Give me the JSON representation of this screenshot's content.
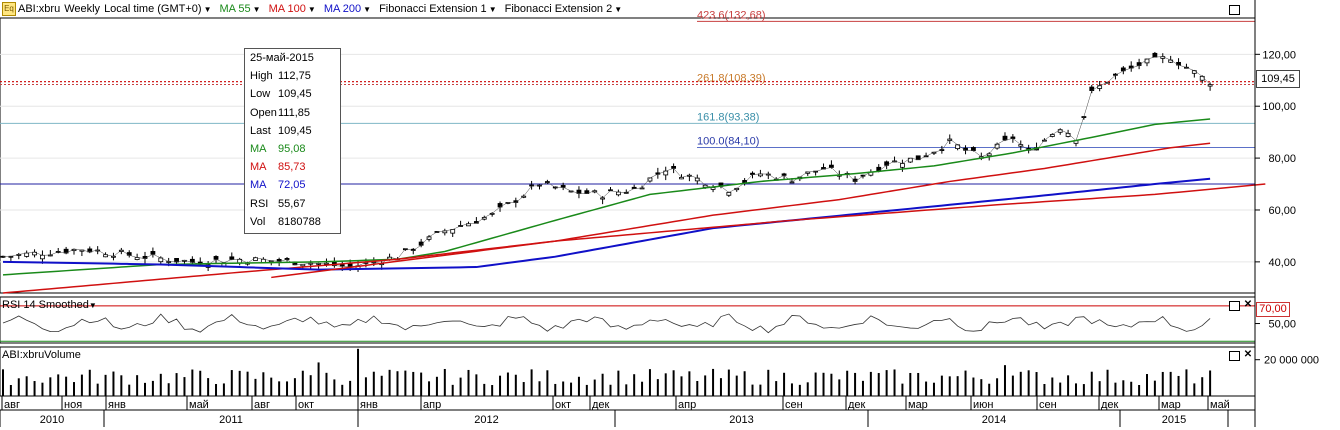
{
  "header": {
    "symbol": "ABI:xbru",
    "period": "Weekly",
    "timezone": "Local time (GMT+0)",
    "indicators": [
      {
        "label": "MA 55",
        "color": "#1a8a1a"
      },
      {
        "label": "MA 100",
        "color": "#d01010"
      },
      {
        "label": "MA 200",
        "color": "#1010c8"
      },
      {
        "label": "Fibonacci Extension 1",
        "color": "#000000"
      },
      {
        "label": "Fibonacci Extension 2",
        "color": "#000000"
      }
    ]
  },
  "tooltip": {
    "date": "25-май-2015",
    "rows": [
      {
        "k": "High",
        "v": "112,75",
        "color": "#000000"
      },
      {
        "k": "Low",
        "v": "109,45",
        "color": "#000000"
      },
      {
        "k": "Open",
        "v": "111,85",
        "color": "#000000"
      },
      {
        "k": "Last",
        "v": "109,45",
        "color": "#000000"
      },
      {
        "k": "MA",
        "v": "95,08",
        "color": "#1a8a1a"
      },
      {
        "k": "MA",
        "v": "85,73",
        "color": "#d01010"
      },
      {
        "k": "MA",
        "v": "72,05",
        "color": "#1010c8"
      },
      {
        "k": "RSI",
        "v": "55,67",
        "color": "#000000"
      },
      {
        "k": "Vol",
        "v": "8180788",
        "color": "#000000"
      }
    ]
  },
  "last_price_label": "109,45",
  "rsi_panel": {
    "title": "RSI 14 Smoothed",
    "level_label": "70,00",
    "axis_labels": [
      "50,00"
    ]
  },
  "volume_panel": {
    "title": "ABI:xbruVolume",
    "axis_labels": [
      "20 000 000"
    ]
  },
  "colors": {
    "ma55": "#1a8a1a",
    "ma100": "#d01010",
    "ma200": "#1010c8",
    "fib": "#d01010",
    "fib161": "#7fb7c6",
    "fib100": "#5b70c8",
    "fib_label_orange": "#c87a2a"
  },
  "chart_data": {
    "type": "candlestick",
    "ylim": [
      28,
      134
    ],
    "y_ticks": [
      "40,00",
      "60,00",
      "80,00",
      "100,00",
      "120,00"
    ],
    "y_tick_values": [
      40,
      60,
      80,
      100,
      120
    ],
    "x_months": [
      "авг",
      "ноя",
      "янв",
      "май",
      "авг",
      "окт",
      "янв",
      "апр",
      "окт",
      "дек",
      "апр",
      "сен",
      "дек",
      "мар",
      "июн",
      "сен",
      "дек",
      "мар",
      "май"
    ],
    "x_years": [
      "2010",
      "2011",
      "2012",
      "2013",
      "2014",
      "2015"
    ],
    "fib_levels": [
      {
        "label": "423.6(132,68)",
        "value": 132.68
      },
      {
        "label": "261.8(108,39)",
        "value": 108.39
      },
      {
        "label": "161.8(93,38)",
        "value": 93.38
      },
      {
        "label": "100.0(84,10)",
        "value": 84.1
      }
    ],
    "price_path": [
      [
        0,
        42
      ],
      [
        10,
        45
      ],
      [
        18,
        42
      ],
      [
        24,
        40
      ],
      [
        30,
        41
      ],
      [
        38,
        40
      ],
      [
        44,
        38
      ],
      [
        50,
        42
      ],
      [
        56,
        52
      ],
      [
        62,
        58
      ],
      [
        68,
        70
      ],
      [
        72,
        67
      ],
      [
        76,
        66
      ],
      [
        80,
        68
      ],
      [
        84,
        76
      ],
      [
        88,
        72
      ],
      [
        92,
        68
      ],
      [
        96,
        74
      ],
      [
        100,
        72
      ],
      [
        104,
        76
      ],
      [
        108,
        72
      ],
      [
        112,
        78
      ],
      [
        116,
        80
      ],
      [
        120,
        86
      ],
      [
        124,
        80
      ],
      [
        128,
        88
      ],
      [
        130,
        82
      ],
      [
        134,
        92
      ],
      [
        136,
        88
      ],
      [
        138,
        105
      ],
      [
        140,
        110
      ],
      [
        144,
        116
      ],
      [
        148,
        119
      ],
      [
        150,
        115
      ],
      [
        152,
        111
      ],
      [
        153,
        109.45
      ]
    ],
    "ma55_path": [
      [
        0,
        35
      ],
      [
        20,
        39
      ],
      [
        40,
        40
      ],
      [
        50,
        41
      ],
      [
        56,
        44
      ],
      [
        70,
        56
      ],
      [
        82,
        66
      ],
      [
        96,
        71
      ],
      [
        108,
        74
      ],
      [
        118,
        77
      ],
      [
        128,
        82
      ],
      [
        138,
        88
      ],
      [
        146,
        93
      ],
      [
        153,
        95.08
      ]
    ],
    "ma100_path": [
      [
        0,
        28
      ],
      [
        30,
        36
      ],
      [
        50,
        41
      ],
      [
        70,
        48
      ],
      [
        90,
        58
      ],
      [
        106,
        64
      ],
      [
        120,
        71
      ],
      [
        132,
        76
      ],
      [
        140,
        80
      ],
      [
        148,
        84
      ],
      [
        153,
        85.73
      ]
    ],
    "ma200_path": [
      [
        0,
        40
      ],
      [
        20,
        39
      ],
      [
        40,
        37
      ],
      [
        60,
        38
      ],
      [
        70,
        42
      ],
      [
        90,
        53
      ],
      [
        110,
        59
      ],
      [
        130,
        65
      ],
      [
        146,
        70
      ],
      [
        153,
        72.05
      ]
    ],
    "red_line_path": [
      [
        34,
        34
      ],
      [
        70,
        48
      ],
      [
        100,
        56
      ],
      [
        126,
        62
      ],
      [
        146,
        66
      ],
      [
        160,
        70
      ]
    ],
    "rsi_ylim": [
      28,
      80
    ],
    "rsi_levels": [
      70,
      30
    ],
    "volume_ylim": [
      0,
      27000000
    ]
  }
}
